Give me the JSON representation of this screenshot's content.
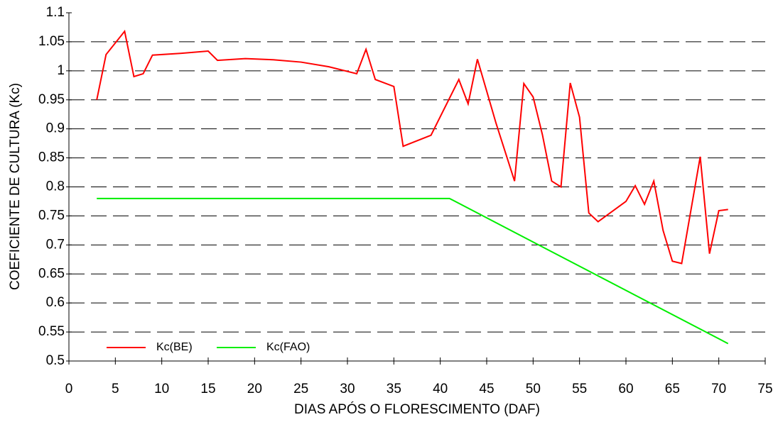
{
  "chart_data": {
    "type": "line",
    "x_label": "DIAS APÓS O FLORESCIMENTO (DAF)",
    "y_label": "COEFICIENTE DE CULTURA (Kc)",
    "xlim": [
      0,
      75
    ],
    "xticks": [
      0,
      5,
      10,
      15,
      20,
      25,
      30,
      35,
      40,
      45,
      50,
      55,
      60,
      65,
      70,
      75
    ],
    "ylim": [
      0.5,
      1.1
    ],
    "yticks": [
      0.5,
      0.55,
      0.6,
      0.65,
      0.7,
      0.75,
      0.8,
      0.85,
      0.9,
      0.95,
      1,
      1.05,
      1.1
    ],
    "grid": true,
    "legend": "lower left",
    "series": [
      {
        "name": "Kc(BE)",
        "color": "#ff0000",
        "x": [
          3,
          4,
          6,
          7,
          8,
          9,
          12,
          15,
          16,
          19,
          22,
          25,
          28,
          31,
          32,
          33,
          35,
          36,
          39,
          42,
          43,
          44,
          46,
          48,
          49,
          50,
          51,
          52,
          53,
          54,
          55,
          56,
          57,
          60,
          61,
          62,
          63,
          64,
          65,
          66,
          68,
          69,
          70,
          71
        ],
        "values": [
          0.95,
          1.028,
          1.068,
          0.99,
          0.995,
          1.027,
          1.03,
          1.034,
          1.018,
          1.021,
          1.019,
          1.015,
          1.007,
          0.995,
          1.037,
          0.985,
          0.973,
          0.87,
          0.889,
          0.985,
          0.943,
          1.02,
          0.91,
          0.81,
          0.978,
          0.955,
          0.89,
          0.81,
          0.8,
          0.979,
          0.92,
          0.755,
          0.74,
          0.775,
          0.802,
          0.77,
          0.81,
          0.725,
          0.672,
          0.668,
          0.852,
          0.685,
          0.759,
          0.761
        ]
      },
      {
        "name": "Kc(FAO)",
        "color": "#00ee00",
        "x": [
          3,
          41,
          71
        ],
        "values": [
          0.78,
          0.78,
          0.53
        ]
      }
    ]
  }
}
